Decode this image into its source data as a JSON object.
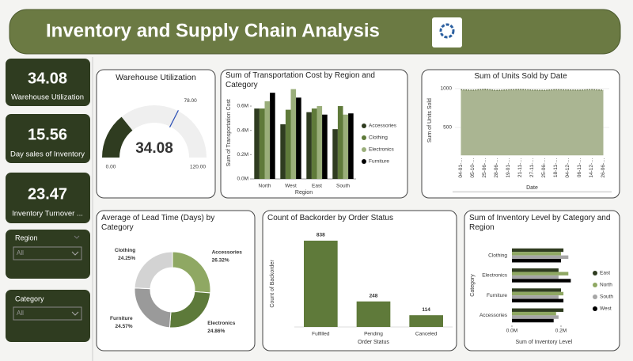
{
  "header": {
    "title": "Inventory and Supply Chain Analysis"
  },
  "kpis": [
    {
      "value": 34.08,
      "label": "Warehouse Utilization"
    },
    {
      "value": 15.56,
      "label": "Day sales of Inventory"
    },
    {
      "value": 23.47,
      "label": "Inventory Turnover ..."
    }
  ],
  "filters": [
    {
      "label": "Region",
      "value": "All"
    },
    {
      "label": "Category",
      "value": "All"
    }
  ],
  "chart_data": [
    {
      "type": "gauge",
      "title": "Warehouse Utilization",
      "value": 34.08,
      "color": "#2f3c20",
      "ylim": [
        0,
        120
      ],
      "yticks": [
        {
          "value": 0,
          "label": "0.00"
        },
        {
          "value": 120,
          "label": "120.00"
        }
      ],
      "target": {
        "value": 78,
        "label": "78.00"
      },
      "target_color": "#2b4fb5"
    },
    {
      "type": "bar",
      "title": "Sum of Transportation Cost by Region and Category",
      "categories": [
        "North",
        "West",
        "East",
        "South"
      ],
      "series": [
        {
          "name": "Accessories",
          "color": "#2f3c20",
          "values": [
            580000,
            450000,
            550000,
            410000
          ]
        },
        {
          "name": "Clothing",
          "color": "#5f7a3a",
          "values": [
            580000,
            570000,
            580000,
            600000
          ]
        },
        {
          "name": "Electronics",
          "color": "#9aae7a",
          "values": [
            640000,
            740000,
            600000,
            530000
          ]
        },
        {
          "name": "Furniture",
          "color": "#000000",
          "values": [
            710000,
            670000,
            530000,
            540000
          ]
        }
      ],
      "ylim": [
        0,
        760000
      ],
      "yticks": [
        {
          "value": 0,
          "label": "0.0M"
        },
        {
          "value": 200000,
          "label": "0.2M"
        },
        {
          "value": 400000,
          "label": "0.4M"
        },
        {
          "value": 600000,
          "label": "0.6M"
        }
      ],
      "xlabel": "Region",
      "ylabel": "Sum of Transportation Cost",
      "legend": "right"
    },
    {
      "type": "area",
      "title": "Sum of Units Sold by Date",
      "categories": [
        "04-01-…",
        "05-10-…",
        "25-06-…",
        "28-06-…",
        "19-01-…",
        "21-11-…",
        "27-11-…",
        "25-06-…",
        "18-11-…",
        "04-12-…",
        "06-11-…",
        "14-12-…",
        "26-06-…"
      ],
      "values": [
        985,
        980,
        990,
        978,
        984,
        988,
        982,
        979,
        986,
        983,
        981,
        987,
        980
      ],
      "color": "#aab592",
      "line_color": "#4a5a2c",
      "ylim": [
        140,
        1040
      ],
      "yticks": [
        500,
        1000
      ],
      "xlabel": "Date",
      "ylabel": "Sum of Units Sold"
    },
    {
      "type": "donut",
      "title": "Average of Lead Time (Days) by Category",
      "categories": [
        "Accessories",
        "Electronics",
        "Furniture",
        "Clothing"
      ],
      "values": [
        26.32,
        24.86,
        24.57,
        24.25
      ],
      "value_labels": [
        "26.32%",
        "24.86%",
        "24.57%",
        "24.25%"
      ],
      "colors": [
        "#8fa863",
        "#5d7a3a",
        "#9a9a9a",
        "#d3d3d3"
      ]
    },
    {
      "type": "bar",
      "title": "Count of Backorder by Order Status",
      "categories": [
        "Fulfilled",
        "Pending",
        "Canceled"
      ],
      "values": [
        838,
        248,
        114
      ],
      "color": "#5f7a3a",
      "xlabel": "Order Status",
      "ylabel": "Count of Backorder"
    },
    {
      "type": "barh",
      "title": "Sum of Inventory Level by Category and Region",
      "categories": [
        "Clothing",
        "Electronics",
        "Furniture",
        "Accessories"
      ],
      "series": [
        {
          "name": "East",
          "color": "#2f3c20",
          "values": [
            210000,
            190000,
            200000,
            210000
          ]
        },
        {
          "name": "North",
          "color": "#8fa863",
          "values": [
            200000,
            230000,
            210000,
            180000
          ]
        },
        {
          "name": "South",
          "color": "#a6a6a6",
          "values": [
            230000,
            190000,
            190000,
            190000
          ]
        },
        {
          "name": "West",
          "color": "#000000",
          "values": [
            200000,
            240000,
            210000,
            170000
          ]
        }
      ],
      "xlim": [
        0,
        260000
      ],
      "xticks": [
        {
          "value": 0,
          "label": "0.0M"
        },
        {
          "value": 200000,
          "label": "0.2M"
        }
      ],
      "xlabel": "Sum of Inventory Level",
      "ylabel": "Category",
      "legend": "right"
    }
  ]
}
